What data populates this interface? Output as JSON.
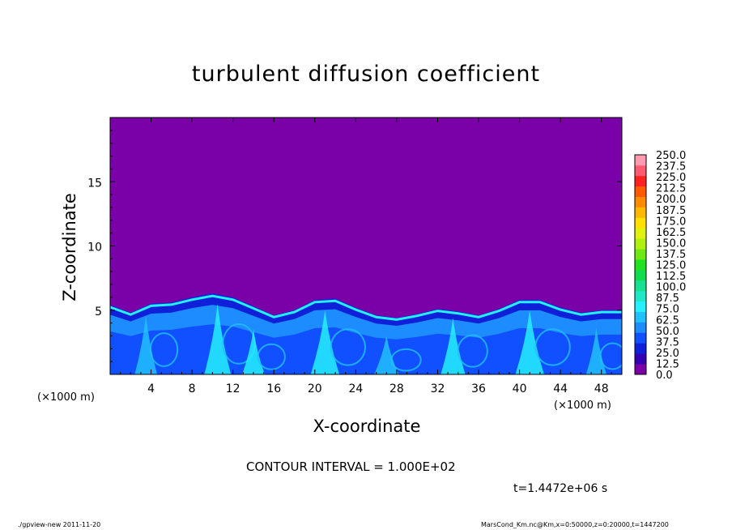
{
  "chart_data": {
    "type": "heatmap",
    "title": "turbulent diffusion coefficient",
    "xlabel": "X-coordinate",
    "ylabel": "Z-coordinate",
    "x_unit_left": "(×1000 m)",
    "x_unit_right": "(×1000 m)",
    "xlim": [
      0,
      50
    ],
    "ylim": [
      0,
      20
    ],
    "x_ticks": [
      "4",
      "8",
      "12",
      "16",
      "20",
      "24",
      "28",
      "32",
      "36",
      "40",
      "44",
      "48"
    ],
    "x_tick_values": [
      4,
      8,
      12,
      16,
      20,
      24,
      28,
      32,
      36,
      40,
      44,
      48
    ],
    "y_ticks": [
      "5",
      "10",
      "15"
    ],
    "y_tick_values": [
      5,
      10,
      15
    ],
    "colorbar": {
      "levels": [
        "0.0",
        "12.5",
        "25.0",
        "37.5",
        "50.0",
        "62.5",
        "75.0",
        "87.5",
        "100.0",
        "112.5",
        "125.0",
        "137.5",
        "150.0",
        "162.5",
        "175.0",
        "187.5",
        "200.0",
        "212.5",
        "225.0",
        "237.5",
        "250.0"
      ],
      "colors": [
        "#7a00a8",
        "#3300b4",
        "#1020d8",
        "#1050ff",
        "#1c8cff",
        "#21c0ff",
        "#24f0ff",
        "#1ee8c8",
        "#17e090",
        "#10dc50",
        "#20e020",
        "#70e818",
        "#b0f010",
        "#e0f010",
        "#ffe000",
        "#ffb800",
        "#ff8c00",
        "#ff5a00",
        "#ff2020",
        "#ff5a70",
        "#ff9ab0"
      ]
    },
    "background_value": 0.0,
    "background_color": "#7a00a8",
    "field_top_heights": [
      {
        "x": 0,
        "z": 5.4
      },
      {
        "x": 2,
        "z": 4.8
      },
      {
        "x": 4,
        "z": 5.5
      },
      {
        "x": 6,
        "z": 5.6
      },
      {
        "x": 8,
        "z": 6.0
      },
      {
        "x": 10,
        "z": 6.3
      },
      {
        "x": 12,
        "z": 6.0
      },
      {
        "x": 14,
        "z": 5.3
      },
      {
        "x": 16,
        "z": 4.6
      },
      {
        "x": 18,
        "z": 5.0
      },
      {
        "x": 20,
        "z": 5.8
      },
      {
        "x": 22,
        "z": 5.9
      },
      {
        "x": 24,
        "z": 5.2
      },
      {
        "x": 26,
        "z": 4.6
      },
      {
        "x": 28,
        "z": 4.4
      },
      {
        "x": 30,
        "z": 4.7
      },
      {
        "x": 32,
        "z": 5.1
      },
      {
        "x": 34,
        "z": 4.9
      },
      {
        "x": 36,
        "z": 4.6
      },
      {
        "x": 38,
        "z": 5.1
      },
      {
        "x": 40,
        "z": 5.8
      },
      {
        "x": 42,
        "z": 5.8
      },
      {
        "x": 44,
        "z": 5.2
      },
      {
        "x": 46,
        "z": 4.8
      },
      {
        "x": 48,
        "z": 5.0
      },
      {
        "x": 50,
        "z": 5.0
      }
    ],
    "plumes": [
      {
        "x": 3.5,
        "width": 2.2,
        "height": 4.6,
        "value": 70
      },
      {
        "x": 10.5,
        "width": 2.6,
        "height": 5.5,
        "value": 80
      },
      {
        "x": 14.0,
        "width": 2.2,
        "height": 3.5,
        "value": 75
      },
      {
        "x": 21.0,
        "width": 2.8,
        "height": 5.0,
        "value": 80
      },
      {
        "x": 27.0,
        "width": 2.4,
        "height": 3.0,
        "value": 70
      },
      {
        "x": 33.5,
        "width": 2.4,
        "height": 4.4,
        "value": 85
      },
      {
        "x": 41.0,
        "width": 2.8,
        "height": 5.0,
        "value": 80
      },
      {
        "x": 47.5,
        "width": 2.0,
        "height": 3.6,
        "value": 70
      }
    ],
    "contour_interval": "CONTOUR INTERVAL = 1.000E+02",
    "time_label": "t=1.4472e+06 s"
  },
  "footer": {
    "left": "./gpview-new   2011-11-20",
    "right": "MarsCond_Km.nc@Km,x=0:50000,z=0:20000,t=1447200"
  }
}
